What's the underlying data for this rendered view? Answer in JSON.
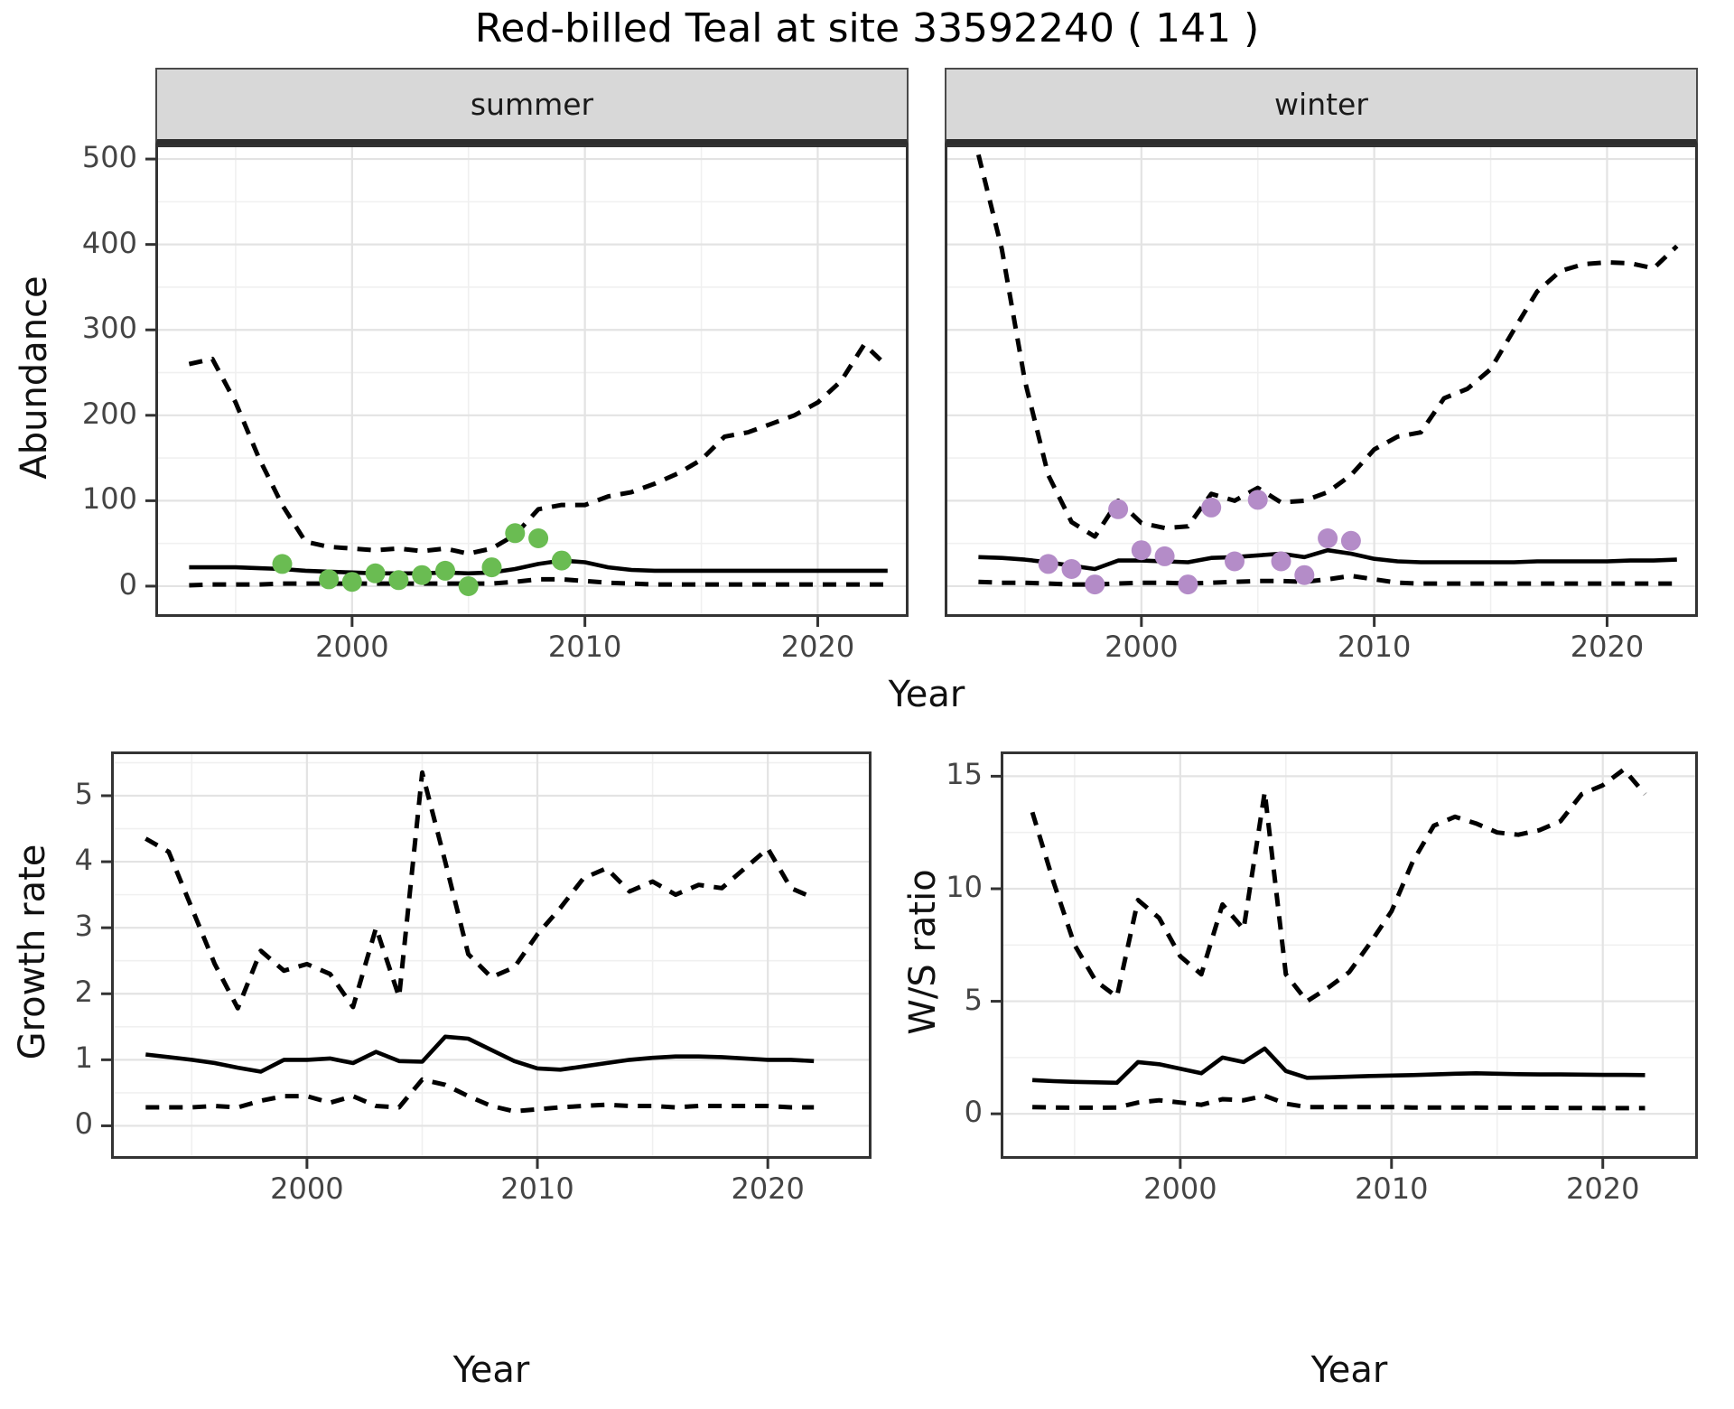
{
  "title": "Red-billed Teal at site 33592240 ( 141 )",
  "facets": {
    "summer": "summer",
    "winter": "winter"
  },
  "axis_labels": {
    "abundance": "Abundance",
    "year": "Year",
    "growth_rate": "Growth rate",
    "ws_ratio": "W/S ratio"
  },
  "colors": {
    "summer_points": "#6abc52",
    "winter_points": "#b48cc8",
    "line": "#000000",
    "grid_major": "#e3e3e3",
    "grid_minor": "#f0f0f0",
    "panel_border": "#333333",
    "strip_bg": "#d8d8d8",
    "axis_text": "#444444",
    "title_text": "#000000"
  },
  "chart_data": [
    {
      "id": "abundance_summer",
      "type": "line",
      "facet_label": "summer",
      "xlabel": "Year",
      "ylabel": "Abundance",
      "xlim": [
        1991.55,
        2023.9
      ],
      "ylim": [
        -36,
        517
      ],
      "x_ticks": [
        2000,
        2010,
        2020
      ],
      "x_minor": [
        1995,
        2005,
        2015
      ],
      "y_ticks": [
        0,
        100,
        200,
        300,
        400,
        500
      ],
      "y_minor": [
        50,
        150,
        250,
        350,
        450
      ],
      "grid": true,
      "legend": "none",
      "show_y_axis_labels": true,
      "years": [
        1993,
        1994,
        1995,
        1996,
        1997,
        1998,
        1999,
        2000,
        2001,
        2002,
        2003,
        2004,
        2005,
        2006,
        2007,
        2008,
        2009,
        2010,
        2011,
        2012,
        2013,
        2014,
        2015,
        2016,
        2017,
        2018,
        2019,
        2020,
        2021,
        2022,
        2023
      ],
      "series": [
        {
          "name": "upper_ci",
          "style": "dashed",
          "values": [
            260,
            266,
            215,
            150,
            95,
            52,
            46,
            44,
            42,
            44,
            41,
            44,
            38,
            44,
            60,
            90,
            95,
            95,
            105,
            110,
            120,
            132,
            148,
            175,
            180,
            190,
            200,
            215,
            240,
            283,
            257
          ]
        },
        {
          "name": "median",
          "style": "solid",
          "values": [
            22,
            22,
            22,
            21,
            20,
            18,
            17,
            16,
            15,
            15,
            15,
            16,
            15,
            16,
            20,
            26,
            30,
            28,
            22,
            19,
            18,
            18,
            18,
            18,
            18,
            18,
            18,
            18,
            18,
            18,
            18
          ]
        },
        {
          "name": "lower_ci",
          "style": "dashed",
          "values": [
            1,
            2,
            2,
            2,
            3,
            3,
            3,
            3,
            3,
            3,
            3,
            3,
            3,
            3,
            5,
            8,
            8,
            6,
            4,
            3,
            2,
            2,
            2,
            2,
            2,
            2,
            2,
            2,
            2,
            2,
            2
          ]
        }
      ],
      "points": {
        "color_key": "summer_points",
        "years": [
          1997,
          1999,
          2000,
          2001,
          2002,
          2003,
          2004,
          2005,
          2006,
          2007,
          2008,
          2009
        ],
        "values": [
          26,
          8,
          5,
          15,
          7,
          13,
          18,
          0,
          22,
          62,
          56,
          30
        ]
      }
    },
    {
      "id": "abundance_winter",
      "type": "line",
      "facet_label": "winter",
      "xlabel": "Year",
      "ylabel": "Abundance",
      "xlim": [
        1991.55,
        2023.9
      ],
      "ylim": [
        -36,
        517
      ],
      "x_ticks": [
        2000,
        2010,
        2020
      ],
      "x_minor": [
        1995,
        2005,
        2015
      ],
      "y_ticks": [
        0,
        100,
        200,
        300,
        400,
        500
      ],
      "y_minor": [
        50,
        150,
        250,
        350,
        450
      ],
      "grid": true,
      "legend": "none",
      "show_y_axis_labels": false,
      "years": [
        1993,
        1994,
        1995,
        1996,
        1997,
        1998,
        1999,
        2000,
        2001,
        2002,
        2003,
        2004,
        2005,
        2006,
        2007,
        2008,
        2009,
        2010,
        2011,
        2012,
        2013,
        2014,
        2015,
        2016,
        2017,
        2018,
        2019,
        2020,
        2021,
        2022,
        2023
      ],
      "series": [
        {
          "name": "upper_ci",
          "style": "dashed",
          "values": [
            505,
            395,
            240,
            130,
            75,
            58,
            100,
            74,
            68,
            70,
            108,
            100,
            115,
            98,
            100,
            110,
            130,
            160,
            175,
            180,
            220,
            231,
            254,
            300,
            345,
            369,
            377,
            379,
            378,
            372,
            398
          ]
        },
        {
          "name": "median",
          "style": "solid",
          "values": [
            34,
            33,
            31,
            28,
            24,
            20,
            30,
            30,
            29,
            28,
            33,
            34,
            36,
            38,
            34,
            42,
            38,
            32,
            29,
            28,
            28,
            28,
            28,
            28,
            29,
            29,
            29,
            29,
            30,
            30,
            31
          ]
        },
        {
          "name": "lower_ci",
          "style": "dashed",
          "values": [
            5,
            4,
            4,
            3,
            2,
            2,
            3,
            4,
            4,
            3,
            4,
            5,
            6,
            6,
            5,
            8,
            12,
            8,
            4,
            3,
            3,
            3,
            3,
            3,
            3,
            3,
            3,
            3,
            3,
            3,
            3
          ]
        }
      ],
      "points": {
        "color_key": "winter_points",
        "years": [
          1996,
          1997,
          1998,
          1999,
          2000,
          2001,
          2002,
          2003,
          2004,
          2005,
          2006,
          2007,
          2008,
          2009
        ],
        "values": [
          26,
          20,
          2,
          90,
          42,
          35,
          2,
          92,
          29,
          101,
          29,
          13,
          56,
          53
        ]
      }
    },
    {
      "id": "growth_rate",
      "type": "line",
      "facet_label": "",
      "xlabel": "Year",
      "ylabel": "Growth rate",
      "xlim": [
        1991.5,
        2024.5
      ],
      "ylim": [
        -0.5,
        5.67
      ],
      "x_ticks": [
        2000,
        2010,
        2020
      ],
      "x_minor": [
        1995,
        2005,
        2015
      ],
      "y_ticks": [
        0,
        1,
        2,
        3,
        4,
        5
      ],
      "y_minor": [
        0.5,
        1.5,
        2.5,
        3.5,
        4.5,
        5.5
      ],
      "grid": true,
      "legend": "none",
      "show_y_axis_labels": true,
      "years": [
        1993,
        1994,
        1995,
        1996,
        1997,
        1998,
        1999,
        2000,
        2001,
        2002,
        2003,
        2004,
        2005,
        2006,
        2007,
        2008,
        2009,
        2010,
        2011,
        2012,
        2013,
        2014,
        2015,
        2016,
        2017,
        2018,
        2019,
        2020,
        2021,
        2022
      ],
      "series": [
        {
          "name": "upper_ci",
          "style": "dashed",
          "values": [
            4.35,
            4.15,
            3.3,
            2.45,
            1.78,
            2.65,
            2.35,
            2.45,
            2.3,
            1.8,
            3.0,
            1.95,
            5.35,
            4.0,
            2.6,
            2.25,
            2.4,
            2.9,
            3.3,
            3.75,
            3.9,
            3.55,
            3.7,
            3.5,
            3.65,
            3.6,
            3.9,
            4.2,
            3.6,
            3.45
          ]
        },
        {
          "name": "median",
          "style": "solid",
          "values": [
            1.08,
            1.04,
            1.0,
            0.95,
            0.88,
            0.82,
            1.0,
            1.0,
            1.02,
            0.95,
            1.12,
            0.98,
            0.97,
            1.35,
            1.32,
            1.15,
            0.98,
            0.87,
            0.85,
            0.9,
            0.95,
            1.0,
            1.03,
            1.05,
            1.05,
            1.04,
            1.02,
            1.0,
            1.0,
            0.98
          ]
        },
        {
          "name": "lower_ci",
          "style": "dashed",
          "values": [
            0.28,
            0.28,
            0.28,
            0.3,
            0.28,
            0.38,
            0.45,
            0.45,
            0.35,
            0.45,
            0.3,
            0.28,
            0.7,
            0.62,
            0.45,
            0.3,
            0.22,
            0.25,
            0.28,
            0.3,
            0.32,
            0.3,
            0.3,
            0.28,
            0.3,
            0.3,
            0.3,
            0.3,
            0.28,
            0.28
          ]
        }
      ],
      "points": null
    },
    {
      "id": "ws_ratio",
      "type": "line",
      "facet_label": "",
      "xlabel": "Year",
      "ylabel": "W/S ratio",
      "xlim": [
        1991.5,
        2024.5
      ],
      "ylim": [
        -2.0,
        16.1
      ],
      "x_ticks": [
        2000,
        2010,
        2020
      ],
      "x_minor": [
        1995,
        2005,
        2015
      ],
      "y_ticks": [
        0,
        5,
        10,
        15
      ],
      "y_minor": [
        2.5,
        7.5,
        12.5
      ],
      "grid": true,
      "legend": "none",
      "show_y_axis_labels": true,
      "years": [
        1993,
        1994,
        1995,
        1996,
        1997,
        1998,
        1999,
        2000,
        2001,
        2002,
        2003,
        2004,
        2005,
        2006,
        2007,
        2008,
        2009,
        2010,
        2011,
        2012,
        2013,
        2014,
        2015,
        2016,
        2017,
        2018,
        2019,
        2020,
        2021,
        2022
      ],
      "series": [
        {
          "name": "upper_ci",
          "style": "dashed",
          "values": [
            13.4,
            10.3,
            7.5,
            5.9,
            5.2,
            9.5,
            8.7,
            7.0,
            6.2,
            9.3,
            8.2,
            14.3,
            6.2,
            5.0,
            5.6,
            6.3,
            7.6,
            9.0,
            11.2,
            12.8,
            13.2,
            12.9,
            12.5,
            12.4,
            12.6,
            13.0,
            14.2,
            14.6,
            15.3,
            14.2
          ]
        },
        {
          "name": "median",
          "style": "solid",
          "values": [
            1.5,
            1.45,
            1.42,
            1.4,
            1.38,
            2.3,
            2.2,
            2.0,
            1.8,
            2.5,
            2.3,
            2.9,
            1.9,
            1.6,
            1.62,
            1.65,
            1.68,
            1.7,
            1.72,
            1.75,
            1.78,
            1.8,
            1.78,
            1.76,
            1.75,
            1.75,
            1.74,
            1.73,
            1.73,
            1.72
          ]
        },
        {
          "name": "lower_ci",
          "style": "dashed",
          "values": [
            0.3,
            0.28,
            0.27,
            0.27,
            0.28,
            0.5,
            0.6,
            0.5,
            0.4,
            0.65,
            0.6,
            0.8,
            0.45,
            0.3,
            0.3,
            0.3,
            0.3,
            0.3,
            0.28,
            0.28,
            0.28,
            0.28,
            0.27,
            0.27,
            0.27,
            0.26,
            0.26,
            0.25,
            0.25,
            0.25
          ]
        }
      ],
      "points": null
    }
  ]
}
